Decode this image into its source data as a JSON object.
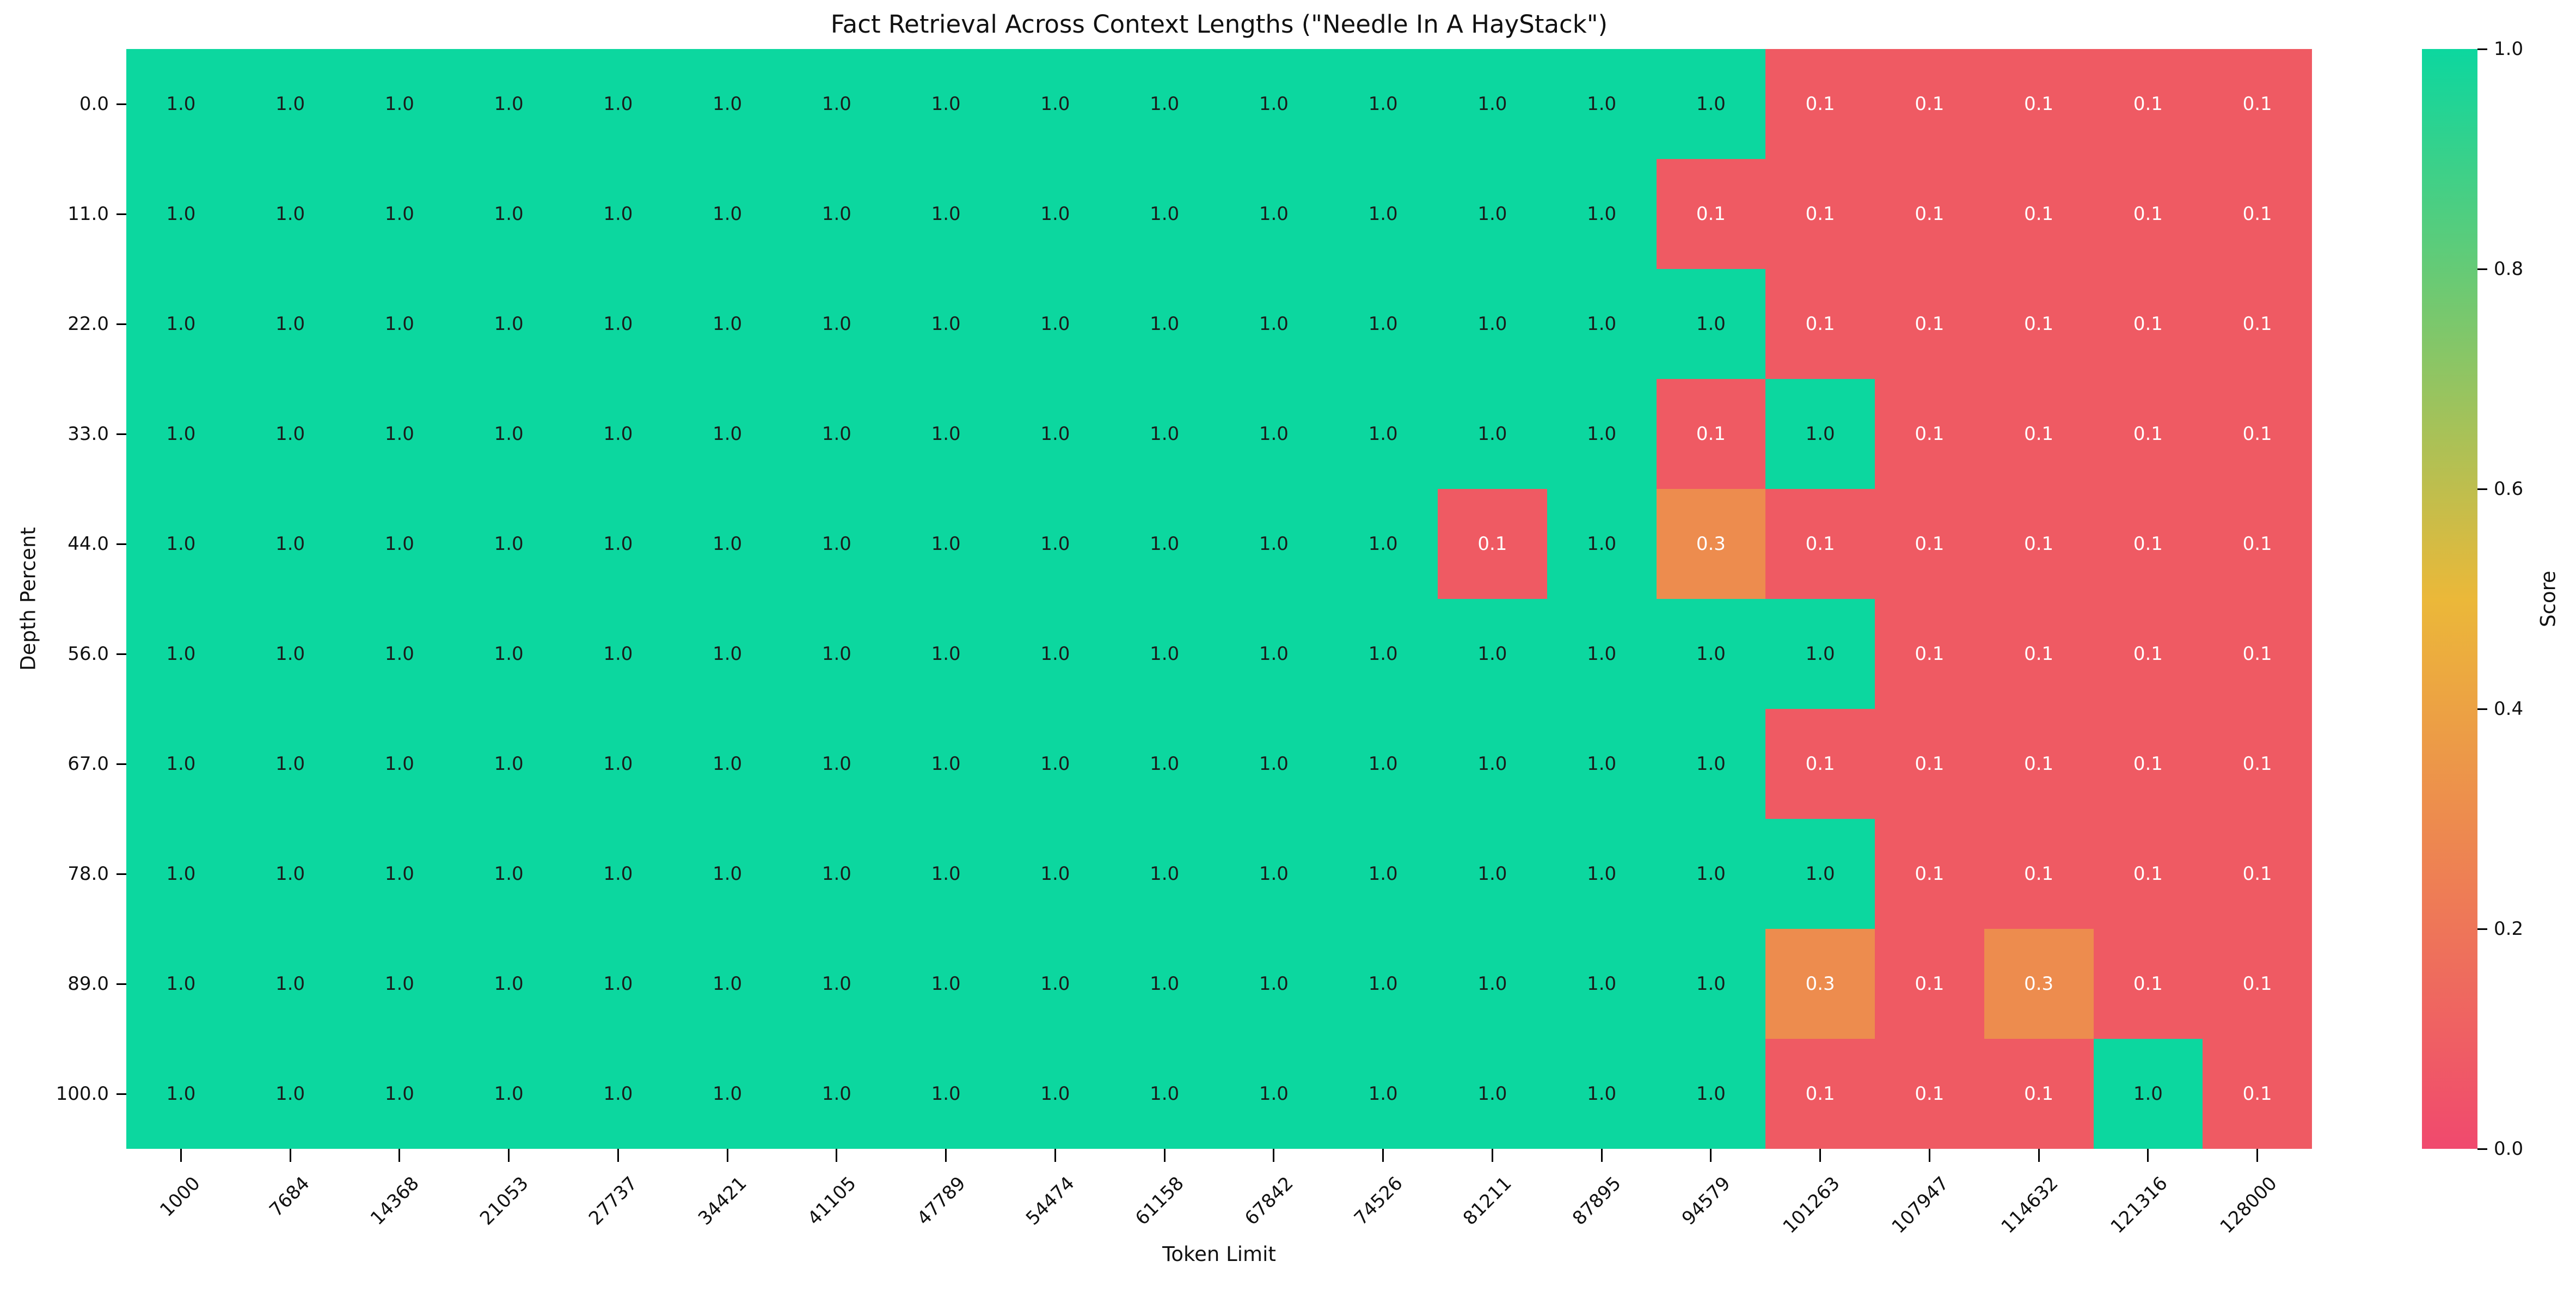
{
  "chart_data": {
    "type": "heatmap",
    "title": "Fact Retrieval Across Context Lengths (\"Needle In A HayStack\")",
    "xlabel": "Token Limit",
    "ylabel": "Depth Percent",
    "x_categories": [
      "1000",
      "7684",
      "14368",
      "21053",
      "27737",
      "34421",
      "41105",
      "47789",
      "54474",
      "61158",
      "67842",
      "74526",
      "81211",
      "87895",
      "94579",
      "101263",
      "107947",
      "114632",
      "121316",
      "128000"
    ],
    "y_categories": [
      "0.0",
      "11.0",
      "22.0",
      "33.0",
      "44.0",
      "56.0",
      "67.0",
      "78.0",
      "89.0",
      "100.0"
    ],
    "values": [
      [
        1.0,
        1.0,
        1.0,
        1.0,
        1.0,
        1.0,
        1.0,
        1.0,
        1.0,
        1.0,
        1.0,
        1.0,
        1.0,
        1.0,
        1.0,
        0.1,
        0.1,
        0.1,
        0.1,
        0.1
      ],
      [
        1.0,
        1.0,
        1.0,
        1.0,
        1.0,
        1.0,
        1.0,
        1.0,
        1.0,
        1.0,
        1.0,
        1.0,
        1.0,
        1.0,
        0.1,
        0.1,
        0.1,
        0.1,
        0.1,
        0.1
      ],
      [
        1.0,
        1.0,
        1.0,
        1.0,
        1.0,
        1.0,
        1.0,
        1.0,
        1.0,
        1.0,
        1.0,
        1.0,
        1.0,
        1.0,
        1.0,
        0.1,
        0.1,
        0.1,
        0.1,
        0.1
      ],
      [
        1.0,
        1.0,
        1.0,
        1.0,
        1.0,
        1.0,
        1.0,
        1.0,
        1.0,
        1.0,
        1.0,
        1.0,
        1.0,
        1.0,
        0.1,
        1.0,
        0.1,
        0.1,
        0.1,
        0.1
      ],
      [
        1.0,
        1.0,
        1.0,
        1.0,
        1.0,
        1.0,
        1.0,
        1.0,
        1.0,
        1.0,
        1.0,
        1.0,
        0.1,
        1.0,
        0.3,
        0.1,
        0.1,
        0.1,
        0.1,
        0.1
      ],
      [
        1.0,
        1.0,
        1.0,
        1.0,
        1.0,
        1.0,
        1.0,
        1.0,
        1.0,
        1.0,
        1.0,
        1.0,
        1.0,
        1.0,
        1.0,
        1.0,
        0.1,
        0.1,
        0.1,
        0.1
      ],
      [
        1.0,
        1.0,
        1.0,
        1.0,
        1.0,
        1.0,
        1.0,
        1.0,
        1.0,
        1.0,
        1.0,
        1.0,
        1.0,
        1.0,
        1.0,
        0.1,
        0.1,
        0.1,
        0.1,
        0.1
      ],
      [
        1.0,
        1.0,
        1.0,
        1.0,
        1.0,
        1.0,
        1.0,
        1.0,
        1.0,
        1.0,
        1.0,
        1.0,
        1.0,
        1.0,
        1.0,
        1.0,
        0.1,
        0.1,
        0.1,
        0.1
      ],
      [
        1.0,
        1.0,
        1.0,
        1.0,
        1.0,
        1.0,
        1.0,
        1.0,
        1.0,
        1.0,
        1.0,
        1.0,
        1.0,
        1.0,
        1.0,
        0.3,
        0.1,
        0.3,
        0.1,
        0.1
      ],
      [
        1.0,
        1.0,
        1.0,
        1.0,
        1.0,
        1.0,
        1.0,
        1.0,
        1.0,
        1.0,
        1.0,
        1.0,
        1.0,
        1.0,
        1.0,
        0.1,
        0.1,
        0.1,
        1.0,
        0.1
      ]
    ],
    "value_colors": {
      "1.0": "#0CD79F",
      "0.3": "#ED8C4E",
      "0.1": "#EF5A63"
    },
    "cell_text_colors": {
      "1.0": "#1b1b1b",
      "0.3": "#ffffff",
      "0.1": "#ffffff"
    },
    "colorbar": {
      "label": "Score",
      "ticks": [
        "0.0",
        "0.2",
        "0.4",
        "0.6",
        "0.8",
        "1.0"
      ],
      "gradient": [
        "#F0496E",
        "#EBB839",
        "#0CD79F"
      ]
    },
    "axis_ranges": {
      "score_min": 0.0,
      "score_max": 1.0
    },
    "grid": "off",
    "legend_position": "right-colorbar"
  }
}
